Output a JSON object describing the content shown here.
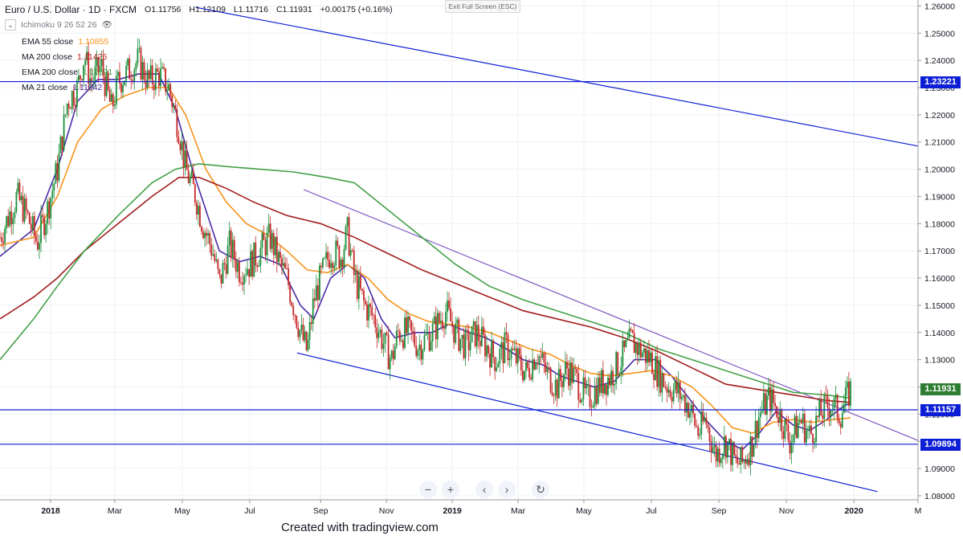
{
  "header": {
    "symbol": "Euro / U.S. Dollar · 1D · FXCM",
    "open": "O1.11756",
    "high": "H1.12109",
    "low": "L1.11716",
    "close": "C1.11931",
    "change": "+0.00175 (+0.16%)",
    "ichimoku": "Ichimoku 9 26 52 26"
  },
  "indicators": [
    {
      "label": "EMA 55 close",
      "value": "1.10855",
      "color": "#f7931a"
    },
    {
      "label": "MA 200 close",
      "value": "1.11426",
      "color": "#b71c1c"
    },
    {
      "label": "EMA 200 close",
      "value": "1.11591",
      "color": "#43a047"
    },
    {
      "label": "MA 21 close",
      "value": "1.11042",
      "color": "#4527a0"
    }
  ],
  "exit_label": "Exit Full Screen (ESC)",
  "credit": "Created with tradingview.com",
  "price_badges": [
    {
      "value": "1.23221",
      "bg": "#0d1fd6"
    },
    {
      "value": "1.11931",
      "bg": "#2e7d32"
    },
    {
      "value": "1.11157",
      "bg": "#0d1fd6"
    },
    {
      "value": "1.09894",
      "bg": "#0d1fd6"
    }
  ],
  "chart_data": {
    "type": "candlestick",
    "y_ticks": [
      "1.26000",
      "1.25000",
      "1.24000",
      "1.23000",
      "1.22000",
      "1.21000",
      "1.20000",
      "1.19000",
      "1.18000",
      "1.17000",
      "1.16000",
      "1.15000",
      "1.14000",
      "1.13000",
      "1.12000",
      "1.11000",
      "1.10000",
      "1.09000",
      "1.08000"
    ],
    "ylim": [
      1.0785,
      1.2622
    ],
    "x_ticks": [
      {
        "label": "2018",
        "t": 1,
        "bold": true
      },
      {
        "label": "Mar",
        "t": 2.9
      },
      {
        "label": "May",
        "t": 4.9
      },
      {
        "label": "Jul",
        "t": 6.9
      },
      {
        "label": "Sep",
        "t": 9.0
      },
      {
        "label": "Nov",
        "t": 10.95
      },
      {
        "label": "2019",
        "t": 12.9,
        "bold": true
      },
      {
        "label": "Mar",
        "t": 14.85
      },
      {
        "label": "May",
        "t": 16.8
      },
      {
        "label": "Jul",
        "t": 18.8
      },
      {
        "label": "Sep",
        "t": 20.8
      },
      {
        "label": "Nov",
        "t": 22.8
      },
      {
        "label": "2020",
        "t": 24.8,
        "bold": true
      },
      {
        "label": "M",
        "t": 26.7
      }
    ],
    "xlim": [
      -0.5,
      26.7
    ],
    "price_path": [
      [
        -0.5,
        1.175
      ],
      [
        0,
        1.19
      ],
      [
        0.3,
        1.183
      ],
      [
        0.6,
        1.173
      ],
      [
        0.9,
        1.185
      ],
      [
        1.2,
        1.2
      ],
      [
        1.5,
        1.225
      ],
      [
        1.8,
        1.23
      ],
      [
        2.0,
        1.242
      ],
      [
        2.2,
        1.232
      ],
      [
        2.5,
        1.238
      ],
      [
        2.8,
        1.222
      ],
      [
        3.0,
        1.232
      ],
      [
        3.3,
        1.236
      ],
      [
        3.6,
        1.24
      ],
      [
        3.9,
        1.232
      ],
      [
        4.2,
        1.235
      ],
      [
        4.5,
        1.23
      ],
      [
        4.8,
        1.215
      ],
      [
        5.0,
        1.2
      ],
      [
        5.3,
        1.19
      ],
      [
        5.5,
        1.18
      ],
      [
        5.8,
        1.17
      ],
      [
        6.0,
        1.158
      ],
      [
        6.3,
        1.172
      ],
      [
        6.6,
        1.163
      ],
      [
        6.9,
        1.165
      ],
      [
        7.2,
        1.17
      ],
      [
        7.5,
        1.175
      ],
      [
        7.8,
        1.165
      ],
      [
        8.0,
        1.16
      ],
      [
        8.2,
        1.15
      ],
      [
        8.4,
        1.14
      ],
      [
        8.6,
        1.133
      ],
      [
        8.8,
        1.152
      ],
      [
        9.0,
        1.16
      ],
      [
        9.3,
        1.17
      ],
      [
        9.6,
        1.168
      ],
      [
        9.8,
        1.177
      ],
      [
        10.0,
        1.16
      ],
      [
        10.3,
        1.15
      ],
      [
        10.6,
        1.145
      ],
      [
        10.9,
        1.135
      ],
      [
        11.1,
        1.13
      ],
      [
        11.3,
        1.14
      ],
      [
        11.6,
        1.14
      ],
      [
        11.9,
        1.135
      ],
      [
        12.3,
        1.14
      ],
      [
        12.7,
        1.148
      ],
      [
        13.0,
        1.14
      ],
      [
        13.3,
        1.135
      ],
      [
        13.6,
        1.14
      ],
      [
        13.9,
        1.135
      ],
      [
        14.2,
        1.13
      ],
      [
        14.5,
        1.135
      ],
      [
        14.8,
        1.13
      ],
      [
        15.1,
        1.125
      ],
      [
        15.4,
        1.133
      ],
      [
        15.7,
        1.125
      ],
      [
        16.0,
        1.12
      ],
      [
        16.3,
        1.127
      ],
      [
        16.6,
        1.122
      ],
      [
        16.9,
        1.115
      ],
      [
        17.2,
        1.12
      ],
      [
        17.6,
        1.124
      ],
      [
        17.9,
        1.13
      ],
      [
        18.2,
        1.137
      ],
      [
        18.5,
        1.133
      ],
      [
        18.8,
        1.13
      ],
      [
        19.0,
        1.125
      ],
      [
        19.3,
        1.12
      ],
      [
        19.6,
        1.118
      ],
      [
        19.9,
        1.113
      ],
      [
        20.2,
        1.103
      ],
      [
        20.4,
        1.108
      ],
      [
        20.7,
        1.095
      ],
      [
        21.0,
        1.1
      ],
      [
        21.3,
        1.092
      ],
      [
        21.5,
        1.092
      ],
      [
        21.8,
        1.1
      ],
      [
        22.0,
        1.11
      ],
      [
        22.3,
        1.116
      ],
      [
        22.6,
        1.11
      ],
      [
        22.9,
        1.1
      ],
      [
        23.2,
        1.108
      ],
      [
        23.5,
        1.102
      ],
      [
        23.8,
        1.11
      ],
      [
        24.1,
        1.114
      ],
      [
        24.4,
        1.11
      ],
      [
        24.7,
        1.119
      ]
    ],
    "ma_paths": [
      {
        "name": "MA 21 close",
        "color": "#4a2aa8",
        "points": [
          [
            -0.5,
            1.168
          ],
          [
            0.5,
            1.178
          ],
          [
            1.2,
            1.2
          ],
          [
            1.8,
            1.225
          ],
          [
            2.4,
            1.233
          ],
          [
            3.0,
            1.233
          ],
          [
            3.6,
            1.235
          ],
          [
            4.2,
            1.235
          ],
          [
            4.7,
            1.222
          ],
          [
            5.2,
            1.2
          ],
          [
            5.6,
            1.185
          ],
          [
            6.0,
            1.17
          ],
          [
            6.6,
            1.166
          ],
          [
            7.2,
            1.168
          ],
          [
            7.8,
            1.165
          ],
          [
            8.4,
            1.15
          ],
          [
            8.8,
            1.145
          ],
          [
            9.3,
            1.16
          ],
          [
            9.8,
            1.165
          ],
          [
            10.3,
            1.16
          ],
          [
            10.8,
            1.145
          ],
          [
            11.2,
            1.138
          ],
          [
            11.8,
            1.14
          ],
          [
            12.3,
            1.14
          ],
          [
            12.8,
            1.143
          ],
          [
            13.4,
            1.14
          ],
          [
            13.9,
            1.138
          ],
          [
            14.5,
            1.134
          ],
          [
            15.0,
            1.13
          ],
          [
            15.6,
            1.128
          ],
          [
            16.1,
            1.124
          ],
          [
            16.6,
            1.122
          ],
          [
            17.1,
            1.12
          ],
          [
            17.7,
            1.122
          ],
          [
            18.3,
            1.13
          ],
          [
            18.9,
            1.13
          ],
          [
            19.4,
            1.124
          ],
          [
            19.9,
            1.116
          ],
          [
            20.4,
            1.108
          ],
          [
            21.0,
            1.1
          ],
          [
            21.5,
            1.097
          ],
          [
            22.0,
            1.103
          ],
          [
            22.5,
            1.111
          ],
          [
            23.0,
            1.106
          ],
          [
            23.5,
            1.104
          ],
          [
            24.0,
            1.108
          ],
          [
            24.5,
            1.113
          ],
          [
            24.7,
            1.114
          ]
        ]
      },
      {
        "name": "EMA 55 close",
        "color": "#f7931a",
        "points": [
          [
            -0.5,
            1.172
          ],
          [
            0.5,
            1.175
          ],
          [
            1.2,
            1.19
          ],
          [
            1.8,
            1.21
          ],
          [
            2.5,
            1.222
          ],
          [
            3.2,
            1.227
          ],
          [
            3.9,
            1.23
          ],
          [
            4.5,
            1.23
          ],
          [
            5.0,
            1.22
          ],
          [
            5.6,
            1.2
          ],
          [
            6.2,
            1.188
          ],
          [
            6.8,
            1.18
          ],
          [
            7.4,
            1.176
          ],
          [
            8.0,
            1.17
          ],
          [
            8.6,
            1.163
          ],
          [
            9.2,
            1.162
          ],
          [
            9.8,
            1.165
          ],
          [
            10.4,
            1.16
          ],
          [
            11.0,
            1.152
          ],
          [
            11.6,
            1.147
          ],
          [
            12.2,
            1.144
          ],
          [
            12.8,
            1.143
          ],
          [
            13.4,
            1.142
          ],
          [
            14.0,
            1.14
          ],
          [
            14.6,
            1.137
          ],
          [
            15.2,
            1.134
          ],
          [
            15.8,
            1.132
          ],
          [
            16.4,
            1.128
          ],
          [
            17.0,
            1.125
          ],
          [
            17.6,
            1.124
          ],
          [
            18.2,
            1.125
          ],
          [
            18.8,
            1.126
          ],
          [
            19.4,
            1.124
          ],
          [
            20.0,
            1.12
          ],
          [
            20.6,
            1.113
          ],
          [
            21.2,
            1.105
          ],
          [
            21.8,
            1.103
          ],
          [
            22.4,
            1.107
          ],
          [
            23.0,
            1.108
          ],
          [
            23.6,
            1.107
          ],
          [
            24.2,
            1.108
          ],
          [
            24.7,
            1.1086
          ]
        ]
      },
      {
        "name": "MA 200 close",
        "color": "#a31d1d",
        "points": [
          [
            -0.5,
            1.145
          ],
          [
            0.5,
            1.153
          ],
          [
            1.2,
            1.16
          ],
          [
            2.0,
            1.17
          ],
          [
            3.0,
            1.18
          ],
          [
            4.0,
            1.19
          ],
          [
            4.8,
            1.197
          ],
          [
            5.4,
            1.197
          ],
          [
            6.2,
            1.193
          ],
          [
            7.0,
            1.188
          ],
          [
            8.0,
            1.183
          ],
          [
            9.0,
            1.18
          ],
          [
            10.0,
            1.175
          ],
          [
            11.0,
            1.169
          ],
          [
            12.0,
            1.163
          ],
          [
            13.0,
            1.158
          ],
          [
            14.0,
            1.153
          ],
          [
            15.0,
            1.148
          ],
          [
            16.0,
            1.145
          ],
          [
            17.0,
            1.142
          ],
          [
            18.0,
            1.138
          ],
          [
            19.0,
            1.133
          ],
          [
            20.0,
            1.127
          ],
          [
            21.0,
            1.121
          ],
          [
            22.0,
            1.119
          ],
          [
            23.0,
            1.117
          ],
          [
            24.0,
            1.115
          ],
          [
            24.7,
            1.1143
          ]
        ]
      },
      {
        "name": "EMA 200 close",
        "color": "#43a047",
        "points": [
          [
            -0.5,
            1.13
          ],
          [
            0.5,
            1.145
          ],
          [
            1.2,
            1.157
          ],
          [
            2.0,
            1.17
          ],
          [
            3.0,
            1.183
          ],
          [
            4.0,
            1.195
          ],
          [
            4.7,
            1.2
          ],
          [
            5.4,
            1.202
          ],
          [
            6.2,
            1.201
          ],
          [
            7.2,
            1.2
          ],
          [
            8.2,
            1.199
          ],
          [
            9.2,
            1.197
          ],
          [
            10.0,
            1.195
          ],
          [
            11.0,
            1.185
          ],
          [
            12.0,
            1.175
          ],
          [
            13.0,
            1.165
          ],
          [
            14.0,
            1.157
          ],
          [
            15.0,
            1.152
          ],
          [
            16.0,
            1.148
          ],
          [
            17.0,
            1.144
          ],
          [
            18.0,
            1.14
          ],
          [
            19.0,
            1.134
          ],
          [
            20.0,
            1.13
          ],
          [
            21.0,
            1.126
          ],
          [
            22.0,
            1.122
          ],
          [
            23.0,
            1.118
          ],
          [
            24.0,
            1.117
          ],
          [
            24.7,
            1.1159
          ]
        ]
      }
    ],
    "trendlines": [
      {
        "color": "#0d1fd6",
        "from": [
          5.3,
          1.2595
        ],
        "to": [
          26.7,
          1.2085
        ]
      },
      {
        "color": "#0d1fd6",
        "from": [
          8.3,
          1.1325
        ],
        "to": [
          25.5,
          1.0815
        ]
      },
      {
        "color": "#7e57c2",
        "from": [
          8.5,
          1.1925
        ],
        "to": [
          26.7,
          1.1003
        ]
      }
    ],
    "hlines": [
      {
        "value": 1.23221,
        "color": "#0d1fd6"
      },
      {
        "value": 1.11157,
        "color": "#0d1fd6"
      },
      {
        "value": 1.09894,
        "color": "#0d1fd6"
      }
    ],
    "grid": true
  }
}
